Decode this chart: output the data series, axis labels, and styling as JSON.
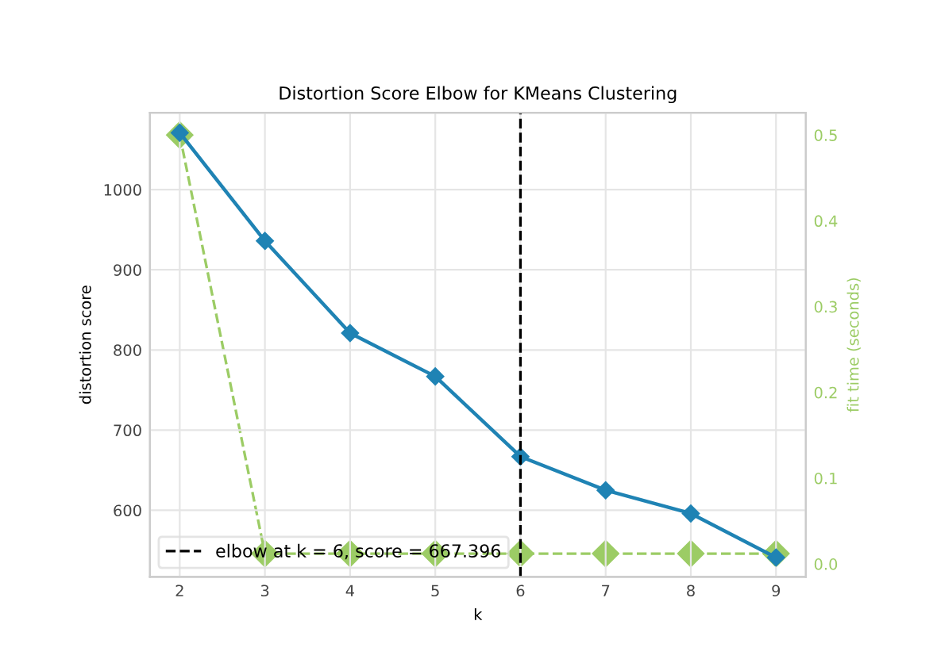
{
  "chart_data": {
    "type": "line",
    "title": "Distortion Score Elbow for KMeans Clustering",
    "xlabel": "k",
    "ylabel": "distortion score",
    "y2label": "fit time (seconds)",
    "x": [
      2,
      3,
      4,
      5,
      6,
      7,
      8,
      9
    ],
    "series": [
      {
        "color": "#1f83b4",
        "values": [
          1071,
          936,
          821,
          767,
          667,
          625,
          596,
          541
        ],
        "axis": "y",
        "line_style": "solid"
      },
      {
        "color": "#9ccc65",
        "values": [
          0.5,
          0.012,
          0.012,
          0.012,
          0.012,
          0.012,
          0.012,
          0.012
        ],
        "axis": "y2",
        "line_style": "dashed"
      }
    ],
    "marker": "diamond",
    "xlim": [
      1.65,
      9.35
    ],
    "xticks": [
      2,
      3,
      4,
      5,
      6,
      7,
      8,
      9
    ],
    "ylim": [
      517,
      1096
    ],
    "yticks": [
      600,
      700,
      800,
      900,
      1000
    ],
    "y2lim": [
      -0.015,
      0.526
    ],
    "y2ticks": [
      {
        "value": 0.0,
        "label": "0.0"
      },
      0.1,
      0.2,
      0.3,
      0.4,
      0.5
    ],
    "ref_lines": [
      {
        "axis": "x",
        "value": 6,
        "label": "elbow at k = 6, score = 667.396",
        "color": "#000000",
        "line_style": "dashed"
      }
    ],
    "grid": true,
    "legend": "bottom left"
  }
}
